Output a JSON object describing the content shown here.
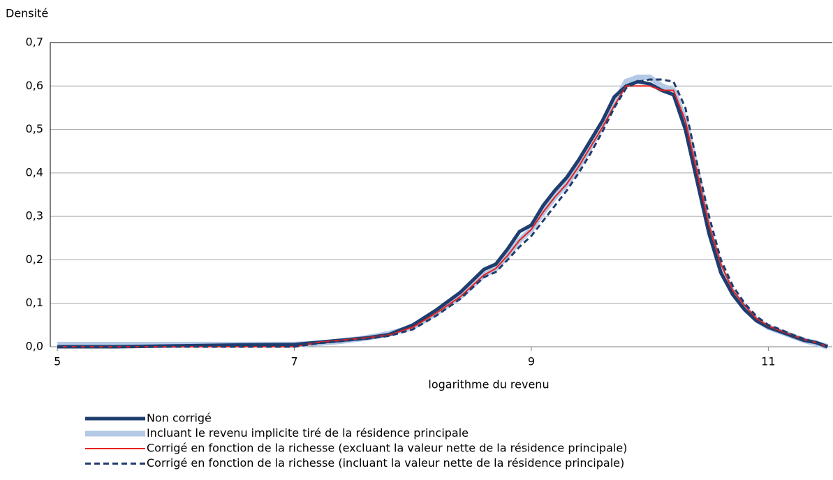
{
  "chart_data": {
    "type": "line",
    "y_axis_title": "Densité",
    "x_axis_title": "logarithme du revenu",
    "x": [
      5,
      5.5,
      6,
      6.5,
      7,
      7.2,
      7.4,
      7.6,
      7.8,
      8,
      8.2,
      8.4,
      8.6,
      8.7,
      8.8,
      8.9,
      9,
      9.1,
      9.2,
      9.3,
      9.4,
      9.5,
      9.6,
      9.7,
      9.8,
      9.9,
      10,
      10.1,
      10.2,
      10.3,
      10.4,
      10.5,
      10.6,
      10.7,
      10.8,
      10.9,
      11,
      11.1,
      11.2,
      11.3,
      11.4,
      11.5
    ],
    "xlim": [
      4.94,
      11.54
    ],
    "xticks": [
      5,
      7,
      9,
      11
    ],
    "ylim": [
      0,
      0.7
    ],
    "yticks": [
      {
        "value": 0,
        "label": "0,0"
      },
      {
        "value": 0.1,
        "label": "0,1"
      },
      {
        "value": 0.2,
        "label": "0,2"
      },
      {
        "value": 0.3,
        "label": "0,3"
      },
      {
        "value": 0.4,
        "label": "0,4"
      },
      {
        "value": 0.5,
        "label": "0,5"
      },
      {
        "value": 0.6,
        "label": "0,6"
      },
      {
        "value": 0.7,
        "label": "0,7"
      }
    ],
    "grid": true,
    "series": [
      {
        "name": "Non corrigé",
        "color": "#1f3d6e",
        "width": 5,
        "dash": "solid",
        "values": [
          0,
          0,
          0.002,
          0.004,
          0.005,
          0.01,
          0.015,
          0.02,
          0.028,
          0.05,
          0.085,
          0.125,
          0.178,
          0.19,
          0.225,
          0.265,
          0.28,
          0.325,
          0.36,
          0.39,
          0.43,
          0.475,
          0.52,
          0.575,
          0.6,
          0.61,
          0.605,
          0.59,
          0.58,
          0.5,
          0.38,
          0.26,
          0.17,
          0.12,
          0.085,
          0.06,
          0.045,
          0.035,
          0.025,
          0.015,
          0.01,
          0
        ]
      },
      {
        "name": "Incluant le revenu implicite tiré de la résidence principale",
        "color": "#b4c9e6",
        "width": 8,
        "dash": "solid",
        "values": [
          0.005,
          0.005,
          0.005,
          0.005,
          0.005,
          0.008,
          0.013,
          0.02,
          0.03,
          0.045,
          0.078,
          0.115,
          0.165,
          0.18,
          0.21,
          0.245,
          0.27,
          0.31,
          0.345,
          0.375,
          0.415,
          0.46,
          0.51,
          0.56,
          0.61,
          0.62,
          0.62,
          0.6,
          0.59,
          0.52,
          0.4,
          0.27,
          0.18,
          0.125,
          0.09,
          0.062,
          0.045,
          0.035,
          0.025,
          0.015,
          0.008,
          0
        ]
      },
      {
        "name": "Corrigé en fonction de la richesse (excluant la valeur nette de la résidence principale)",
        "color": "#e8211f",
        "width": 2,
        "dash": "solid",
        "values": [
          0,
          0,
          0,
          0,
          0,
          0.01,
          0.015,
          0.02,
          0.027,
          0.045,
          0.078,
          0.115,
          0.165,
          0.18,
          0.21,
          0.245,
          0.27,
          0.31,
          0.345,
          0.375,
          0.415,
          0.46,
          0.505,
          0.555,
          0.6,
          0.6,
          0.6,
          0.59,
          0.59,
          0.52,
          0.4,
          0.28,
          0.19,
          0.13,
          0.095,
          0.065,
          0.048,
          0.037,
          0.027,
          0.017,
          0.01,
          0
        ]
      },
      {
        "name": "Corrigé en fonction de la richesse (incluant la valeur nette de la résidence principale)",
        "color": "#1f3d6e",
        "width": 3,
        "dash": "dashed",
        "values": [
          0,
          0,
          0,
          0,
          0,
          0.008,
          0.013,
          0.018,
          0.025,
          0.04,
          0.072,
          0.11,
          0.16,
          0.172,
          0.2,
          0.23,
          0.255,
          0.29,
          0.325,
          0.36,
          0.4,
          0.445,
          0.495,
          0.55,
          0.595,
          0.61,
          0.615,
          0.615,
          0.61,
          0.55,
          0.42,
          0.3,
          0.2,
          0.14,
          0.1,
          0.07,
          0.05,
          0.04,
          0.028,
          0.018,
          0.01,
          0
        ]
      }
    ]
  }
}
